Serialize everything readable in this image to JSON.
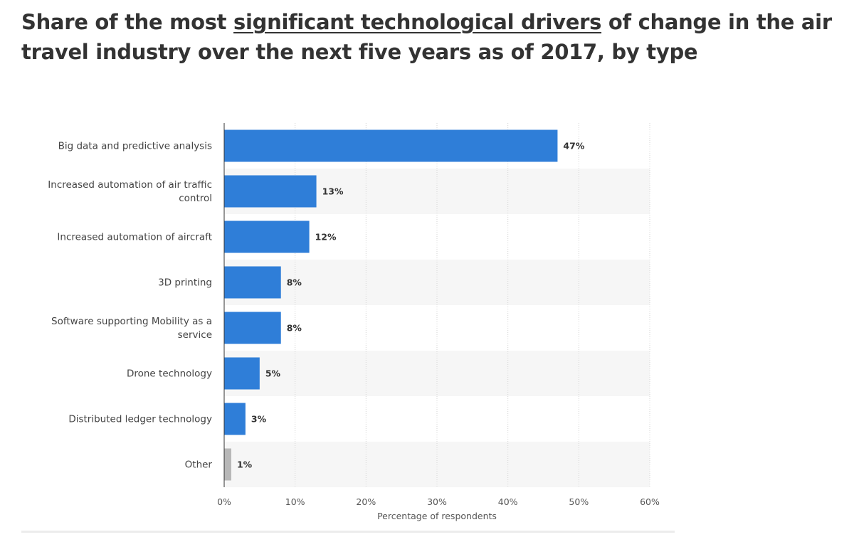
{
  "title": {
    "prefix": "Share of the most ",
    "link": "significant technological drivers",
    "suffix": " of change in the air travel industry over the next five years as of 2017, by type"
  },
  "colors": {
    "bar": "#2f7ed8",
    "bar_other": "#b7b7b7",
    "band": "#f6f6f6",
    "grid": "#d6d6d6",
    "axis": "#333333"
  },
  "chart_data": {
    "type": "bar",
    "orientation": "horizontal",
    "categories": [
      [
        "Big data and predictive analysis"
      ],
      [
        "Increased automation of air traffic",
        "control"
      ],
      [
        "Increased automation of aircraft"
      ],
      [
        "3D printing"
      ],
      [
        "Software supporting Mobility as a",
        "service"
      ],
      [
        "Drone technology"
      ],
      [
        "Distributed ledger technology"
      ],
      [
        "Other"
      ]
    ],
    "values": [
      47,
      13,
      12,
      8,
      8,
      5,
      3,
      1
    ],
    "value_labels": [
      "47%",
      "13%",
      "12%",
      "8%",
      "8%",
      "5%",
      "3%",
      "1%"
    ],
    "xticks": [
      "0%",
      "10%",
      "20%",
      "30%",
      "40%",
      "50%",
      "60%"
    ],
    "xlim": [
      0,
      60
    ],
    "xlabel": "Percentage of respondents",
    "ylabel": "",
    "highlight_gray_index": 7
  }
}
